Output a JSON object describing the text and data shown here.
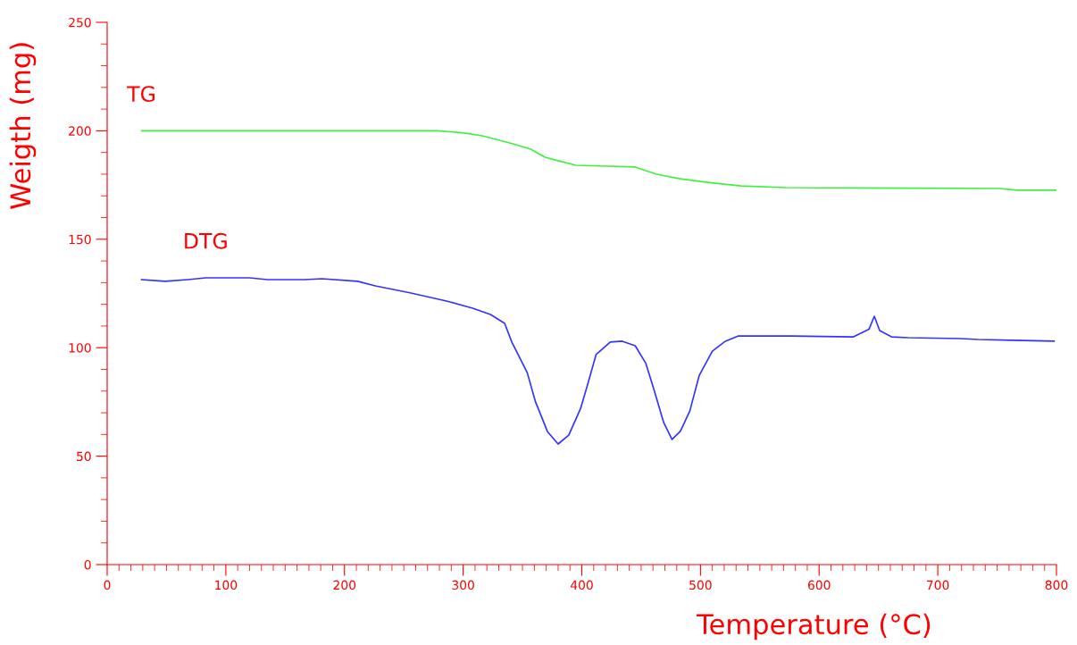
{
  "chart_data": {
    "type": "line",
    "xlabel": "Temperature (°C)",
    "ylabel": "Weigth (mg)",
    "xlim": [
      0,
      800
    ],
    "xticks": [
      0,
      100,
      200,
      300,
      400,
      500,
      600,
      700,
      800
    ],
    "ylim": [
      0,
      250
    ],
    "yticks": [
      0,
      50,
      100,
      150,
      200,
      250
    ],
    "grid": false,
    "legend": false,
    "marker": "none",
    "line_style": "solid",
    "series": [
      {
        "name": "TG",
        "color": "#40f040",
        "x": [
          29,
          278,
          301,
          316,
          342,
          357,
          369,
          380,
          395,
          421,
          445,
          463,
          482,
          504,
          534,
          572,
          752,
          767,
          800
        ],
        "values": [
          200,
          200,
          199,
          197.7,
          194,
          191.5,
          187.8,
          186.2,
          184.1,
          183.7,
          183.3,
          180,
          178,
          176.3,
          174.6,
          173.8,
          173.4,
          172.6,
          172.6
        ]
      },
      {
        "name": "DTG",
        "color": "#3333ff",
        "x": [
          29,
          49,
          68,
          83,
          120,
          135,
          166,
          181,
          211,
          226,
          256,
          286,
          308,
          323,
          335,
          341,
          354,
          361,
          371,
          380,
          389,
          399,
          405,
          412,
          424,
          434,
          445,
          454,
          461,
          469,
          476,
          483,
          491,
          499,
          510,
          521,
          532,
          577,
          629,
          642,
          646.5,
          651,
          661,
          675,
          719,
          734,
          762,
          798
        ],
        "values": [
          131.4,
          130.6,
          131.4,
          132.2,
          132.2,
          131.4,
          131.4,
          131.8,
          130.6,
          128.5,
          125.2,
          121.5,
          118.2,
          115.3,
          111.2,
          102.6,
          88.5,
          75,
          61.4,
          55.6,
          59.7,
          72,
          83.2,
          96.8,
          102.6,
          103,
          100.9,
          92.7,
          80.3,
          65.5,
          57.7,
          61.4,
          70.8,
          87.3,
          98.4,
          103,
          105.4,
          105.4,
          105,
          108.5,
          114.5,
          107.9,
          105,
          104.6,
          104.2,
          103.8,
          103.4,
          103
        ]
      }
    ]
  }
}
